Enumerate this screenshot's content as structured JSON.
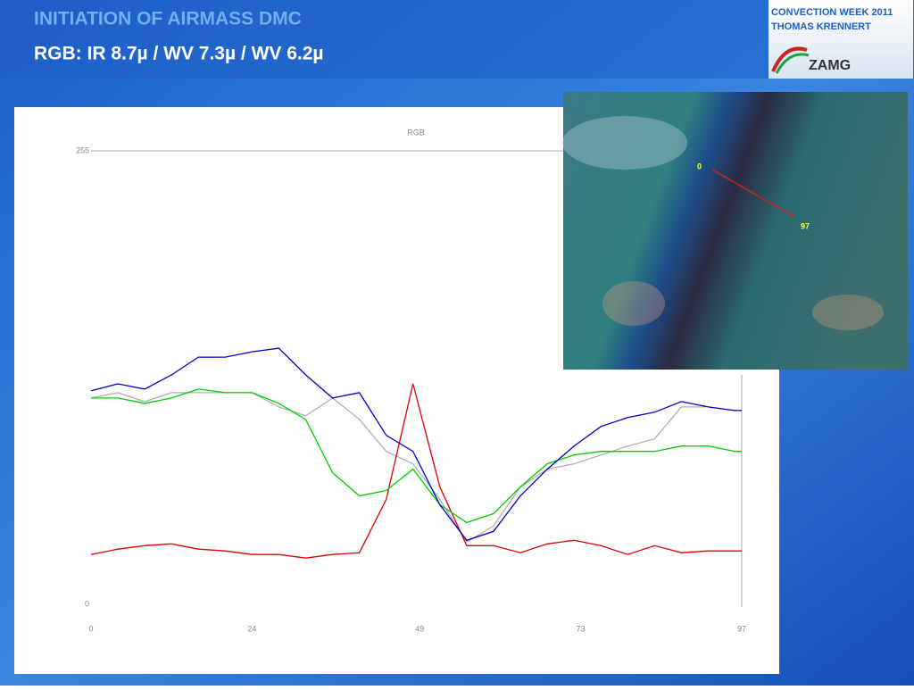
{
  "slide": {
    "title": "INITIATION OF AIRMASS DMC",
    "subtitle": "RGB: IR 8.7µ / WV 7.3µ / WV 6.2µ",
    "event": "CONVECTION WEEK 2011",
    "author": "THOMAS KRENNERT",
    "logo": "ZAMG"
  },
  "map_labels": {
    "start": "0",
    "end": "97"
  },
  "chart_data": {
    "type": "line",
    "title": "RGB",
    "x": [
      0,
      4,
      8,
      12,
      16,
      20,
      24,
      28,
      32,
      36,
      40,
      44,
      48,
      52,
      56,
      60,
      64,
      68,
      72,
      76,
      80,
      84,
      88,
      92,
      96,
      97
    ],
    "xlim": [
      0,
      97
    ],
    "xticks": [
      0,
      24,
      49,
      73,
      97
    ],
    "ylim": [
      0,
      255
    ],
    "yticks": [
      0,
      255
    ],
    "series": [
      {
        "color": "#0000cc",
        "values": [
          120,
          124,
          121,
          129,
          139,
          139,
          142,
          144,
          129,
          116,
          119,
          95,
          86,
          56,
          36,
          41,
          61,
          76,
          89,
          100,
          105,
          108,
          114,
          111,
          109,
          109
        ]
      },
      {
        "color": "#00cc00",
        "values": [
          116,
          116,
          113,
          116,
          121,
          119,
          119,
          113,
          104,
          74,
          61,
          64,
          76,
          56,
          46,
          51,
          66,
          79,
          84,
          86,
          86,
          86,
          89,
          89,
          86,
          86
        ]
      },
      {
        "color": "#dd0000",
        "values": [
          28,
          31,
          33,
          34,
          31,
          30,
          28,
          28,
          26,
          28,
          29,
          59,
          124,
          66,
          33,
          33,
          29,
          34,
          36,
          33,
          28,
          33,
          29,
          30,
          30,
          30
        ]
      },
      {
        "color": "#b0b0b0",
        "values": [
          116,
          119,
          114,
          119,
          119,
          119,
          119,
          111,
          106,
          116,
          104,
          86,
          79,
          59,
          35,
          44,
          66,
          76,
          79,
          84,
          89,
          93,
          111,
          111,
          109,
          109
        ]
      }
    ]
  }
}
